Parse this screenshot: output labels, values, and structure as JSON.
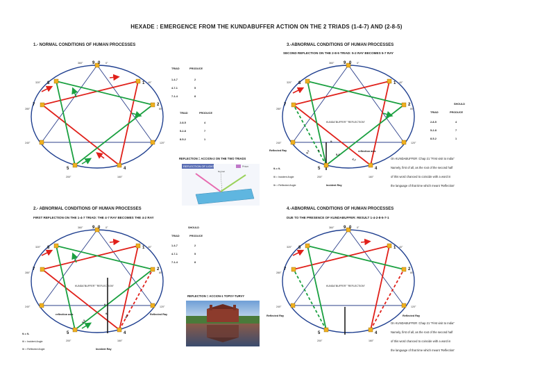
{
  "title": "HEXADE : EMERGENCE FROM THE KUNDABUFFER ACTION ON THE 2 TRIADS (1-4-7) AND (2-8-5)",
  "panels": {
    "p1": {
      "title": "1.- NORMAL CONDITIONS OF HUMAN PROCESSES"
    },
    "p2": {
      "title": "2.- ABNORMAL CONDITIONS OF HUMAN PROCESSES",
      "subtitle": "FIRST REFLECTION ON THE 1-4-7 TRIAD: THE 4-7 RAY BECOMES THE 4-2 RAY"
    },
    "p3": {
      "title": "3.-ABNORMAL CONDITIONS OF HUMAN PROCESSES",
      "subtitle": "SECOND REFLECTION ON THE 2-8-5 TRIAD: 5-2 RAY  BECOMES 5-7 RAY"
    },
    "p4": {
      "title": "4.-ABNORMAL CONDITIONS OF HUMAN PROCESSES",
      "subtitle": "DUE TO THE PRESENCE OF KUNDABUFFER: RESULT 1-4-2-8-5-7-1"
    }
  },
  "points": {
    "n9": "9",
    "n0": "0",
    "n1": "1",
    "n2": "2",
    "n4": "4",
    "n5": "5",
    "n7": "7",
    "n8": "8"
  },
  "degrees": {
    "d360": "360°",
    "d0": "0°",
    "d40": "40°",
    "d80": "80°",
    "d120": "120°",
    "d160": "160°",
    "d200": "200°",
    "d240": "240°",
    "d280": "280°",
    "d320": "320°"
  },
  "table": {
    "should": "SHOULD",
    "triad": "TRIAD",
    "produce": "PRODUCE",
    "produce_lower": "PRODUCE",
    "rows1": [
      {
        "triad": "1-4-7",
        "result": "2"
      },
      {
        "triad": "4-7-1",
        "result": "5"
      },
      {
        "triad": "7-1-4",
        "result": "8"
      }
    ],
    "rows2": [
      {
        "triad": "2-8-5",
        "result": "4"
      },
      {
        "triad": "5-2-8",
        "result": "7"
      },
      {
        "triad": "8-5-2",
        "result": "1"
      }
    ]
  },
  "labels": {
    "kundabuffer_reflection": "KUNDA\"BUFFER\"  \"REFLECTION\"",
    "reflection_axis": "reflection axis",
    "reflected_ray": "Reflected Ray",
    "incident_ray": "Incident Ray",
    "theta_eq": "θᵢ = θᵣ",
    "incident_angle": "θi = Incident Angle",
    "reflected_angle": "θr = Reflected Angle",
    "theta_i": "θᵢ",
    "theta_r": "θᵣ",
    "ray_52": "5-2",
    "ray_42": "4-2",
    "ray_57": "5-7",
    "ray_47": "4-7"
  },
  "middle": {
    "reflection_two_triads": "REFLECTION =  ACCION-2 ON THE TWO TRIADS",
    "reflection_light_banner": "REFLECTION OF LIGHT",
    "reflection_prism": "Prism",
    "normal_label": "Normal",
    "reflection_topsy": "REFLECTION = ACCION-1 TOPSY-TURVY"
  },
  "notes": [
    "On KUNDABUFFER :Chap 21 \"First visit to India\"",
    "Namely, first of all, as the root of the second half",
    "of  this word  chanced  to  coincide with  a word in",
    "the language of that time which meant 'Reflection'"
  ],
  "colors": {
    "circle": "#1f3f8f",
    "red": "#e0201a",
    "green": "#1aa040",
    "blue_line": "#2b3f8a",
    "yellow_node": "#f0b020"
  }
}
